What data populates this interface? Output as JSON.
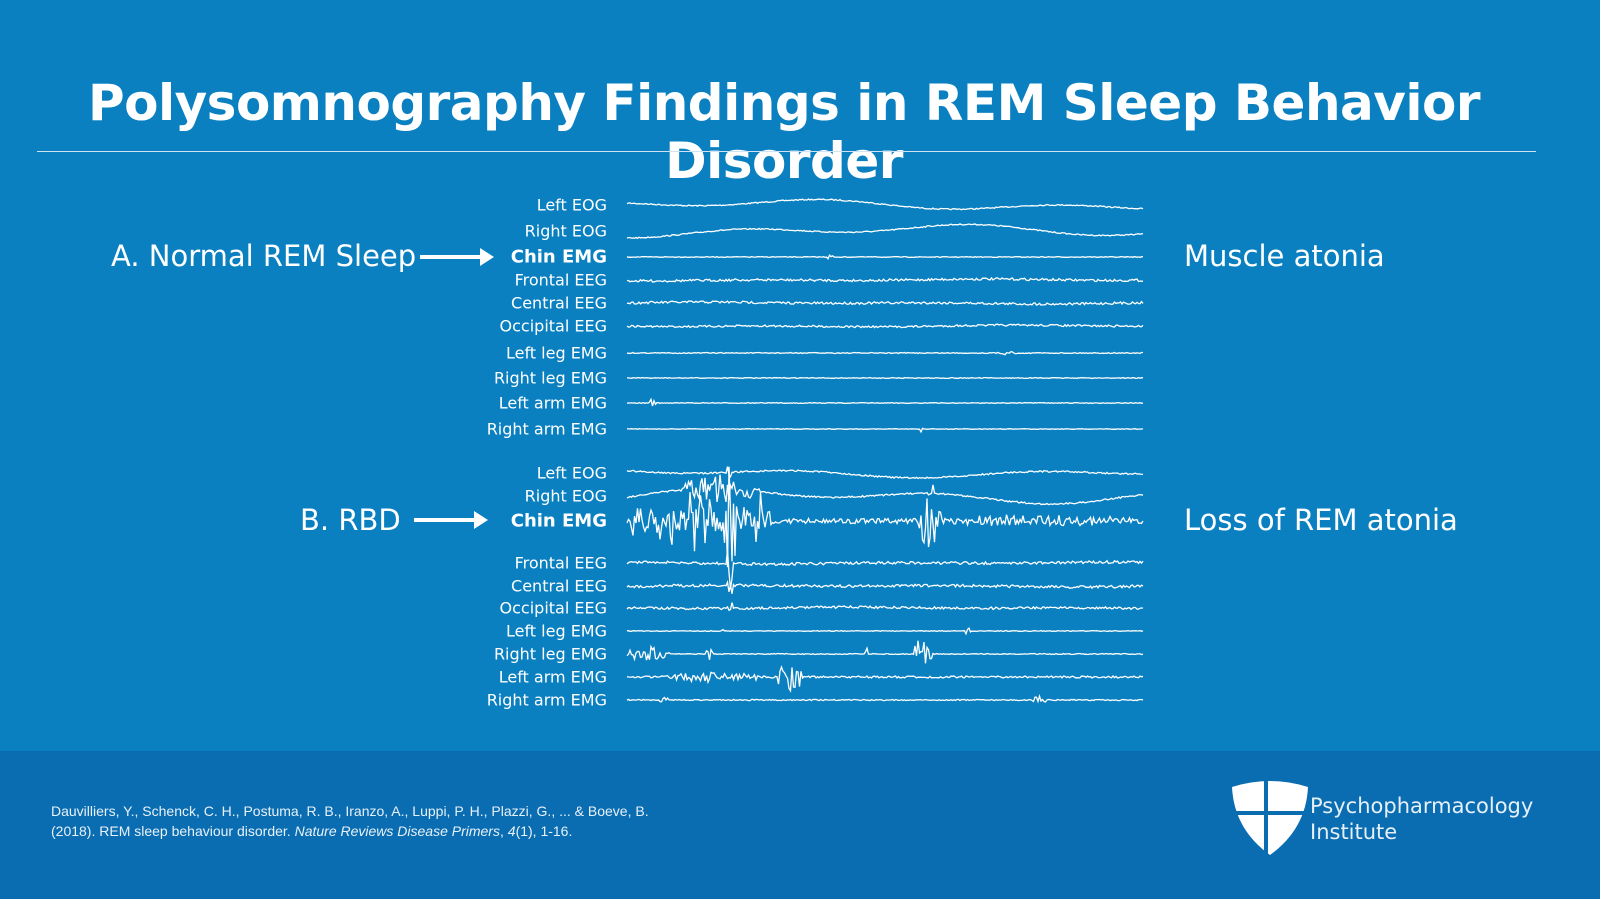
{
  "title": "Polysomnography Findings in REM Sleep Behavior Disorder",
  "panels": [
    {
      "label": "A. Normal REM Sleep",
      "finding": "Muscle atonia",
      "channels": [
        "Left EOG",
        "Right EOG",
        "Chin EMG",
        "Frontal EEG",
        "Central EEG",
        "Occipital EEG",
        "Left leg EMG",
        "Right leg EMG",
        "Left arm EMG",
        "Right arm EMG"
      ]
    },
    {
      "label": "B. RBD",
      "finding": "Loss of REM atonia",
      "channels": [
        "Left EOG",
        "Right EOG",
        "Chin EMG",
        "Frontal EEG",
        "Central EEG",
        "Occipital EEG",
        "Left leg EMG",
        "Right leg EMG",
        "Left arm EMG",
        "Right arm EMG"
      ]
    }
  ],
  "highlight_channel": "Chin EMG",
  "citation": {
    "pre": "Dauvilliers, Y., Schenck, C. H., Postuma, R. B., Iranzo, A., Luppi, P. H., Plazzi, G., ... & Boeve, B. (2018). REM sleep behaviour disorder. ",
    "journal": "Nature Reviews Disease Primers",
    "sep": ", ",
    "volume": "4",
    "issue": "(1), 1-16."
  },
  "brand": {
    "line1": "Psychopharmacology",
    "line2": "Institute",
    "icon": "shield-cross-logo"
  },
  "colors": {
    "background": "#0a80c1",
    "footer": "#0a6db2",
    "text": "#ffffff"
  }
}
